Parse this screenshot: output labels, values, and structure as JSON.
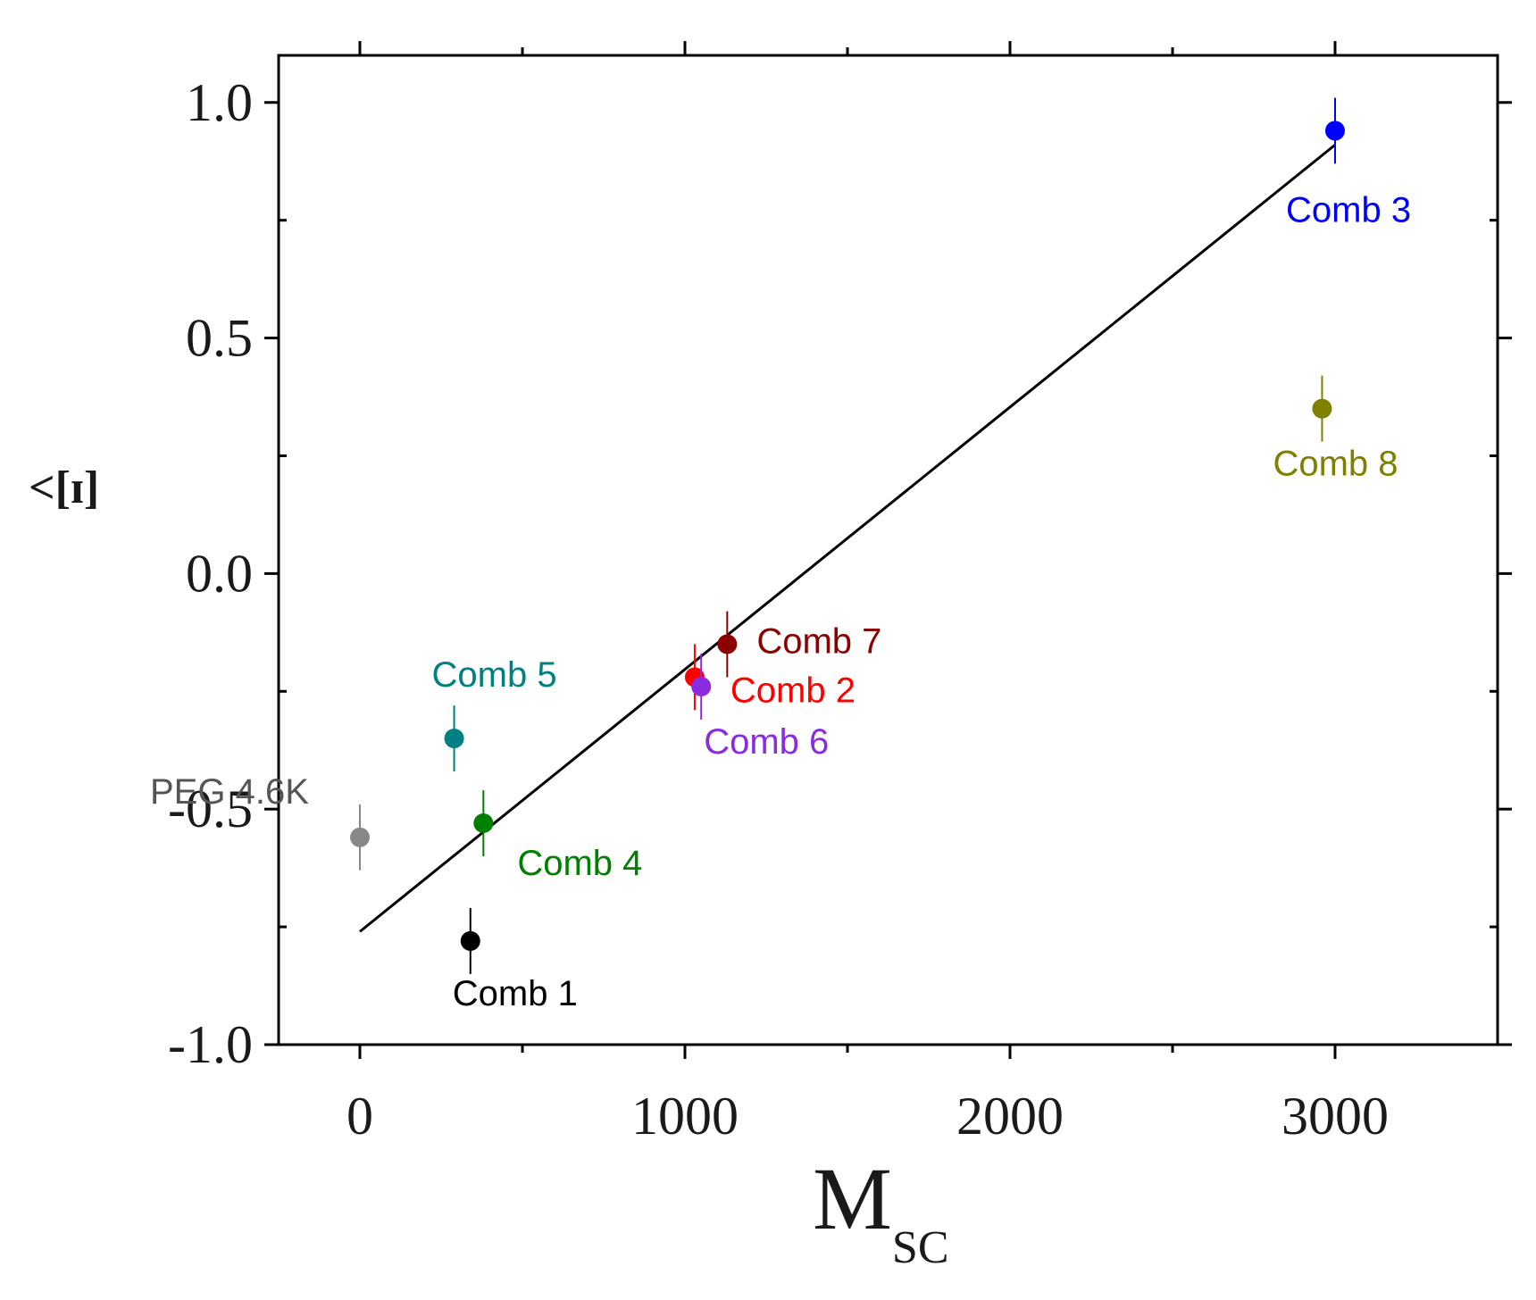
{
  "chart_data": {
    "type": "scatter",
    "xlabel": "M",
    "xlabel_subscript": "SC",
    "ylabel": "<[ɪ]",
    "xlim": [
      -250,
      3500
    ],
    "ylim": [
      -1.0,
      1.1
    ],
    "xticks": [
      0,
      1000,
      2000,
      3000
    ],
    "xtick_labels": [
      "0",
      "1000",
      "2000",
      "3000"
    ],
    "xminor_ticks": [
      500,
      1500,
      2500
    ],
    "yticks": [
      -1.0,
      -0.5,
      0.0,
      0.5,
      1.0
    ],
    "ytick_labels": [
      "-1.0",
      "-0.5",
      "0.0",
      "0.5",
      "1.0"
    ],
    "yminor_ticks": [
      -0.75,
      -0.25,
      0.25,
      0.75
    ],
    "grid": false,
    "fit_line": {
      "x": [
        0,
        3000
      ],
      "y": [
        -0.76,
        0.91
      ],
      "color": "#000000"
    },
    "points": [
      {
        "name": "PEG 4.6K",
        "x": 0,
        "y": -0.56,
        "err": 0.07,
        "color": "#888888",
        "label_dx": -235,
        "label_dy": -38,
        "label_color": "#555555"
      },
      {
        "name": "Comb 1",
        "x": 340,
        "y": -0.78,
        "err": 0.07,
        "color": "#000000",
        "label_dx": -20,
        "label_dy": 72,
        "label_color": "#000000"
      },
      {
        "name": "Comb 2",
        "x": 1030,
        "y": -0.22,
        "err": 0.07,
        "color": "#ff0000",
        "label_dx": 40,
        "label_dy": 28,
        "label_color": "#ff0000"
      },
      {
        "name": "Comb 3",
        "x": 3000,
        "y": 0.94,
        "err": 0.07,
        "color": "#0000ff",
        "label_dx": -55,
        "label_dy": 102,
        "label_color": "#0000ff"
      },
      {
        "name": "Comb 4",
        "x": 380,
        "y": -0.53,
        "err": 0.07,
        "color": "#008000",
        "label_dx": 38,
        "label_dy": 58,
        "label_color": "#008000"
      },
      {
        "name": "Comb 5",
        "x": 290,
        "y": -0.35,
        "err": 0.07,
        "color": "#008080",
        "label_dx": -25,
        "label_dy": -58,
        "label_color": "#008080"
      },
      {
        "name": "Comb 6",
        "x": 1050,
        "y": -0.24,
        "err": 0.07,
        "color": "#8a2be2",
        "label_dx": 3,
        "label_dy": 75,
        "label_color": "#8a2be2"
      },
      {
        "name": "Comb 7",
        "x": 1130,
        "y": -0.15,
        "err": 0.07,
        "color": "#8b0000",
        "label_dx": 33,
        "label_dy": 10,
        "label_color": "#8b0000"
      },
      {
        "name": "Comb 8",
        "x": 2960,
        "y": 0.35,
        "err": 0.07,
        "color": "#808000",
        "label_dx": -55,
        "label_dy": 75,
        "label_color": "#808000"
      }
    ]
  }
}
